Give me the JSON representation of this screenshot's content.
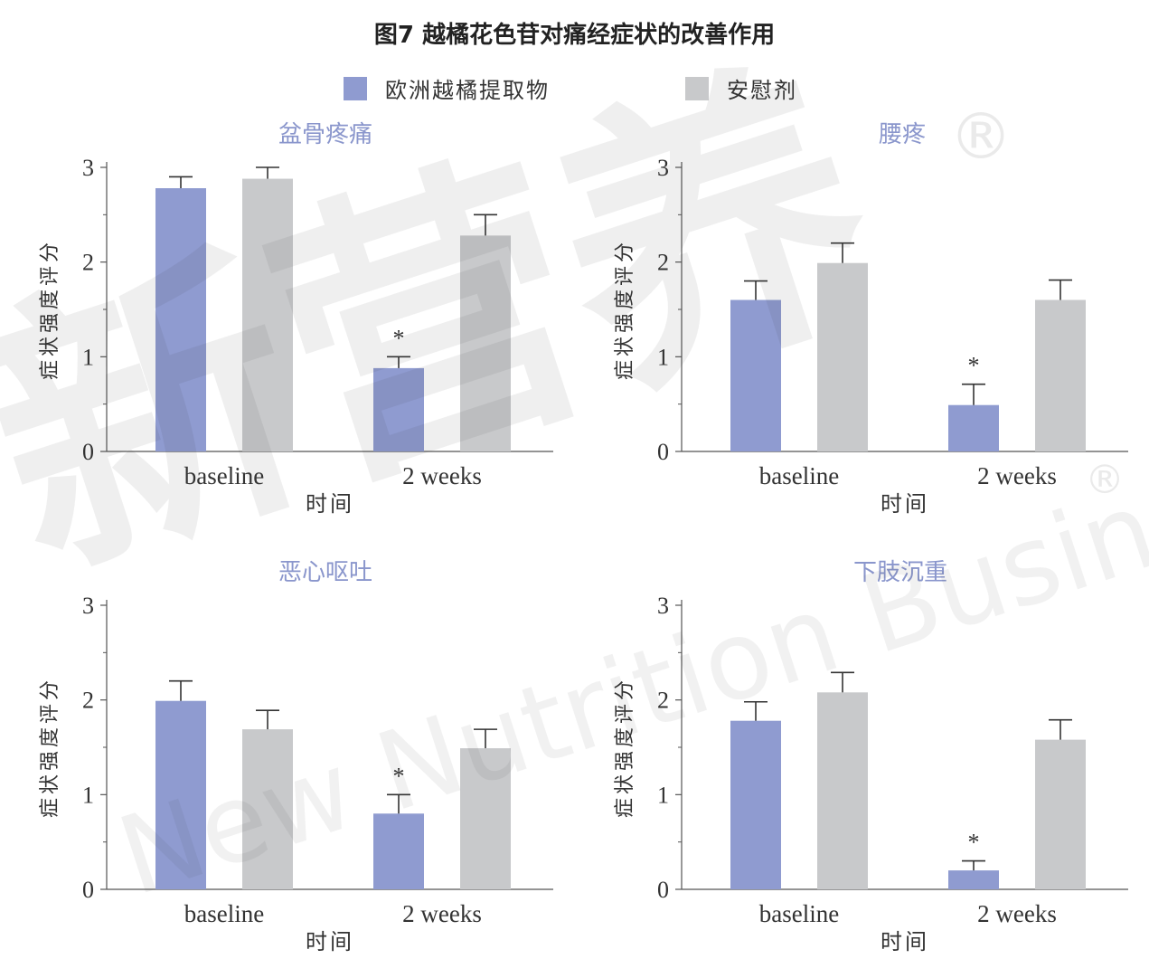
{
  "title": "图7 越橘花色苷对痛经症状的改善作用",
  "legend": [
    {
      "label": "欧洲越橘提取物",
      "color": "#8f9bd0"
    },
    {
      "label": "安慰剂",
      "color": "#c8c9cb"
    }
  ],
  "watermark": {
    "line1": "新营养",
    "line2": "New Nutrition Business",
    "mark": "®"
  },
  "chart_data": [
    {
      "type": "bar",
      "title": "盆骨疼痛",
      "xlabel": "时间",
      "ylabel": "症状强度评分",
      "categories": [
        "baseline",
        "2 weeks"
      ],
      "ylim": [
        0,
        3
      ],
      "yticks": [
        "0",
        "1",
        "2",
        "3"
      ],
      "series": [
        {
          "name": "欧洲越橘提取物",
          "values": [
            2.78,
            0.88
          ],
          "errors": [
            0.12,
            0.12
          ],
          "sig": [
            "",
            "*"
          ]
        },
        {
          "name": "安慰剂",
          "values": [
            2.88,
            2.28
          ],
          "errors": [
            0.12,
            0.22
          ],
          "sig": [
            "",
            ""
          ]
        }
      ]
    },
    {
      "type": "bar",
      "title": "腰疼",
      "xlabel": "时间",
      "ylabel": "症状强度评分",
      "categories": [
        "baseline",
        "2 weeks"
      ],
      "ylim": [
        0,
        3
      ],
      "yticks": [
        "0",
        "1",
        "2",
        "3"
      ],
      "series": [
        {
          "name": "欧洲越橘提取物",
          "values": [
            1.6,
            0.49
          ],
          "errors": [
            0.2,
            0.22
          ],
          "sig": [
            "",
            "*"
          ]
        },
        {
          "name": "安慰剂",
          "values": [
            1.99,
            1.6
          ],
          "errors": [
            0.21,
            0.21
          ],
          "sig": [
            "",
            ""
          ]
        }
      ]
    },
    {
      "type": "bar",
      "title": "恶心呕吐",
      "xlabel": "时间",
      "ylabel": "症状强度评分",
      "categories": [
        "baseline",
        "2 weeks"
      ],
      "ylim": [
        0,
        3
      ],
      "yticks": [
        "0",
        "1",
        "2",
        "3"
      ],
      "series": [
        {
          "name": "欧洲越橘提取物",
          "values": [
            1.99,
            0.8
          ],
          "errors": [
            0.21,
            0.2
          ],
          "sig": [
            "",
            "*"
          ]
        },
        {
          "name": "安慰剂",
          "values": [
            1.69,
            1.49
          ],
          "errors": [
            0.2,
            0.2
          ],
          "sig": [
            "",
            ""
          ]
        }
      ]
    },
    {
      "type": "bar",
      "title": "下肢沉重",
      "xlabel": "时间",
      "ylabel": "症状强度评分",
      "categories": [
        "baseline",
        "2 weeks"
      ],
      "ylim": [
        0,
        3
      ],
      "yticks": [
        "0",
        "1",
        "2",
        "3"
      ],
      "series": [
        {
          "name": "欧洲越橘提取物",
          "values": [
            1.78,
            0.2
          ],
          "errors": [
            0.2,
            0.1
          ],
          "sig": [
            "",
            "*"
          ]
        },
        {
          "name": "安慰剂",
          "values": [
            2.08,
            1.58
          ],
          "errors": [
            0.21,
            0.21
          ],
          "sig": [
            "",
            ""
          ]
        }
      ]
    }
  ]
}
